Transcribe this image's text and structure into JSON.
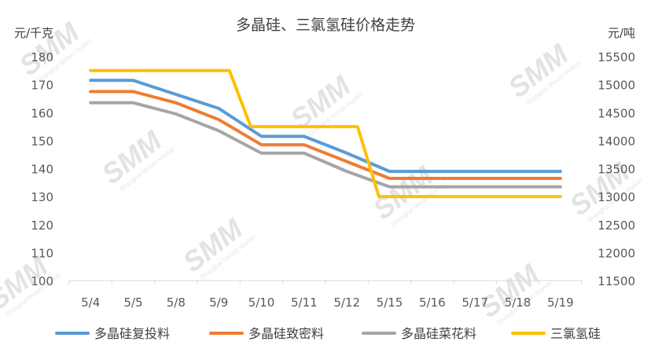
{
  "chart_data": {
    "type": "line",
    "title": "多晶硅、三氯氢硅价格走势",
    "left_axis_unit": "元/千克",
    "right_axis_unit": "元/吨",
    "categories": [
      "5/4",
      "5/5",
      "5/8",
      "5/9",
      "5/10",
      "5/11",
      "5/12",
      "5/15",
      "5/16",
      "5/17",
      "5/18",
      "5/19"
    ],
    "y_left": {
      "min": 100,
      "max": 180,
      "ticks": [
        100,
        110,
        120,
        130,
        140,
        150,
        160,
        170,
        180
      ]
    },
    "y_right": {
      "min": 11500,
      "max": 15500,
      "ticks": [
        11500,
        12000,
        12500,
        13000,
        13500,
        14000,
        14500,
        15000,
        15500
      ]
    },
    "series": [
      {
        "name": "多晶硅复投料",
        "axis": "left",
        "color": "#5b9bd5",
        "values": [
          171.5,
          171.5,
          166.5,
          161.5,
          151.5,
          151.5,
          145.5,
          139,
          139,
          139,
          139,
          139
        ]
      },
      {
        "name": "多晶硅致密料",
        "axis": "left",
        "color": "#ed7d31",
        "values": [
          167.5,
          167.5,
          163.5,
          157.5,
          148.5,
          148.5,
          142.5,
          136.5,
          136.5,
          136.5,
          136.5,
          136.5
        ]
      },
      {
        "name": "多晶硅菜花料",
        "axis": "left",
        "color": "#a5a5a5",
        "values": [
          163.5,
          163.5,
          159.5,
          153.5,
          145.5,
          145.5,
          139,
          133.5,
          133.5,
          133.5,
          133.5,
          133.5
        ]
      },
      {
        "name": "三氯氢硅",
        "axis": "right",
        "color": "#ffc000",
        "step": true,
        "values": [
          15250,
          15250,
          15250,
          15250,
          14250,
          14250,
          14250,
          13000,
          13000,
          13000,
          13000,
          13000
        ]
      }
    ],
    "legend_position": "bottom",
    "grid": false
  },
  "watermark": {
    "logo": "SMM",
    "tagline": "Shanghai Metals Market"
  }
}
